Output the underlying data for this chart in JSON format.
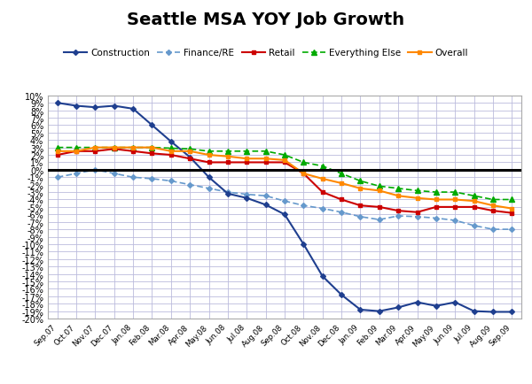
{
  "title": "Seattle MSA YOY Job Growth",
  "x_labels": [
    "Sep.07",
    "Oct.07",
    "Nov.07",
    "Dec.07",
    "Jan.08",
    "Feb.08",
    "Mar.08",
    "Apr.08",
    "May.08",
    "Jun.08",
    "Jul.08",
    "Aug.08",
    "Sep.08",
    "Oct.08",
    "Nov.08",
    "Dec.08",
    "Jan.09",
    "Feb.09",
    "Mar.09",
    "Apr.09",
    "May.09",
    "Jun.09",
    "Jul.09",
    "Aug.09",
    "Sep.09"
  ],
  "construction": [
    0.09,
    0.086,
    0.084,
    0.086,
    0.082,
    0.06,
    0.038,
    0.017,
    -0.01,
    -0.032,
    -0.038,
    -0.047,
    -0.06,
    -0.1,
    -0.143,
    -0.168,
    -0.188,
    -0.19,
    -0.185,
    -0.178,
    -0.183,
    -0.178,
    -0.19,
    -0.191,
    -0.191
  ],
  "finance_re": [
    -0.01,
    -0.005,
    0.0,
    -0.005,
    -0.01,
    -0.012,
    -0.015,
    -0.02,
    -0.025,
    -0.03,
    -0.033,
    -0.035,
    -0.042,
    -0.048,
    -0.052,
    -0.057,
    -0.063,
    -0.067,
    -0.062,
    -0.063,
    -0.065,
    -0.068,
    -0.075,
    -0.08,
    -0.08
  ],
  "retail": [
    0.02,
    0.025,
    0.025,
    0.028,
    0.025,
    0.022,
    0.02,
    0.015,
    0.01,
    0.01,
    0.01,
    0.01,
    0.01,
    -0.005,
    -0.03,
    -0.04,
    -0.048,
    -0.05,
    -0.055,
    -0.057,
    -0.05,
    -0.05,
    -0.05,
    -0.055,
    -0.058
  ],
  "everything_else": [
    0.03,
    0.03,
    0.03,
    0.03,
    0.03,
    0.03,
    0.029,
    0.028,
    0.025,
    0.025,
    0.025,
    0.025,
    0.02,
    0.01,
    0.005,
    -0.005,
    -0.015,
    -0.022,
    -0.025,
    -0.028,
    -0.03,
    -0.03,
    -0.035,
    -0.04,
    -0.04
  ],
  "overall": [
    0.025,
    0.025,
    0.03,
    0.03,
    0.03,
    0.03,
    0.025,
    0.025,
    0.02,
    0.018,
    0.015,
    0.015,
    0.013,
    -0.005,
    -0.012,
    -0.018,
    -0.025,
    -0.028,
    -0.035,
    -0.038,
    -0.04,
    -0.04,
    -0.042,
    -0.048,
    -0.052
  ],
  "construction_color": "#1F3F8F",
  "finance_re_color": "#6699CC",
  "retail_color": "#CC0000",
  "everything_else_color": "#00AA00",
  "overall_color": "#FF8800",
  "ylim_min": -0.2,
  "ylim_max": 0.1,
  "ytick_step": 0.01,
  "background_color": "#FFFFFF",
  "grid_color": "#BBBBDD",
  "zero_line_color": "#000000",
  "title_fontsize": 14,
  "legend_fontsize": 7.5,
  "xtick_fontsize": 6.2,
  "ytick_fontsize": 7.0
}
